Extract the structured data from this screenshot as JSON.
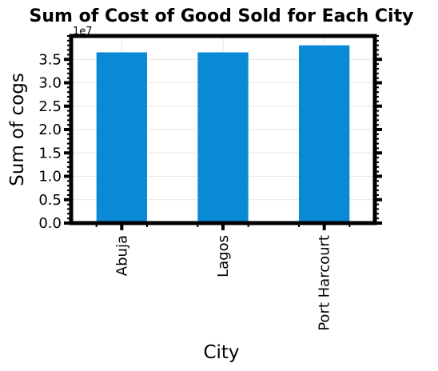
{
  "chart_data": {
    "type": "bar",
    "title": "Sum of Cost of Good Sold for Each City",
    "xlabel": "City",
    "ylabel": "Sum of cogs",
    "y_offset_label": "1e7",
    "y_scale": 10000000,
    "categories": [
      "Abuja",
      "Lagos",
      "Port Harcourt"
    ],
    "series": [
      {
        "values": [
          36500000,
          36500000,
          38000000
        ]
      }
    ],
    "ylim": [
      0,
      40000000
    ],
    "yticks": [
      0,
      5000000,
      10000000,
      15000000,
      20000000,
      25000000,
      30000000,
      35000000
    ],
    "ytick_labels": [
      "0.0",
      "0.5",
      "1.0",
      "1.5",
      "2.0",
      "2.5",
      "3.0",
      "3.5"
    ],
    "grid": true,
    "legend": "none",
    "colors": {
      "bar": "#0a8ad4",
      "frame": "#000000",
      "grid": "#e6e6e6"
    }
  }
}
